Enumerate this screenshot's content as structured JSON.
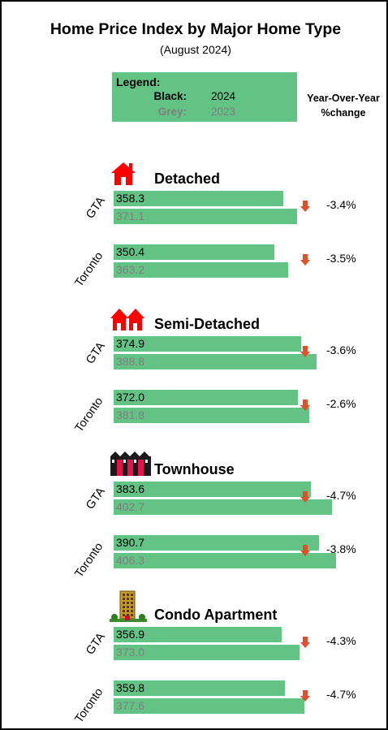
{
  "title": "Home Price Index by Major Home Type",
  "subtitle": "(August 2024)",
  "legend": {
    "heading": "Legend:",
    "black_key": "Black:",
    "black_value": "2024",
    "grey_key": "Grey:",
    "grey_value": "2023"
  },
  "yoy_header_line1": "Year-Over-Year",
  "yoy_header_line2": "%change",
  "colors": {
    "bar": "#63c384",
    "text_2024": "#000000",
    "text_2023": "#7f7f7f",
    "arrow": "#e0502a"
  },
  "chart_data": {
    "type": "bar",
    "orientation": "horizontal",
    "title": "Home Price Index by Major Home Type",
    "subtitle": "(August 2024)",
    "series_names": [
      "2024",
      "2023"
    ],
    "groups": [
      {
        "name": "Detached",
        "icon": "house-icon",
        "rows": [
          {
            "region": "GTA",
            "v2024": "358.3",
            "v2023": "371.1",
            "yoy": "-3.4%"
          },
          {
            "region": "Toronto",
            "v2024": "350.4",
            "v2023": "363.2",
            "yoy": "-3.5%"
          }
        ]
      },
      {
        "name": "Semi-Detached",
        "icon": "semi-detached-icon",
        "rows": [
          {
            "region": "GTA",
            "v2024": "374.9",
            "v2023": "388.8",
            "yoy": "-3.6%"
          },
          {
            "region": "Toronto",
            "v2024": "372.0",
            "v2023": "381.8",
            "yoy": "-2.6%"
          }
        ]
      },
      {
        "name": "Townhouse",
        "icon": "townhouse-icon",
        "rows": [
          {
            "region": "GTA",
            "v2024": "383.6",
            "v2023": "402.7",
            "yoy": "-4.7%"
          },
          {
            "region": "Toronto",
            "v2024": "390.7",
            "v2023": "406.3",
            "yoy": "-3.8%"
          }
        ]
      },
      {
        "name": "Condo Apartment",
        "icon": "condo-building-icon",
        "rows": [
          {
            "region": "GTA",
            "v2024": "356.9",
            "v2023": "373.0",
            "yoy": "-4.3%"
          },
          {
            "region": "Toronto",
            "v2024": "359.8",
            "v2023": "377.6",
            "yoy": "-4.7%"
          }
        ]
      }
    ]
  }
}
